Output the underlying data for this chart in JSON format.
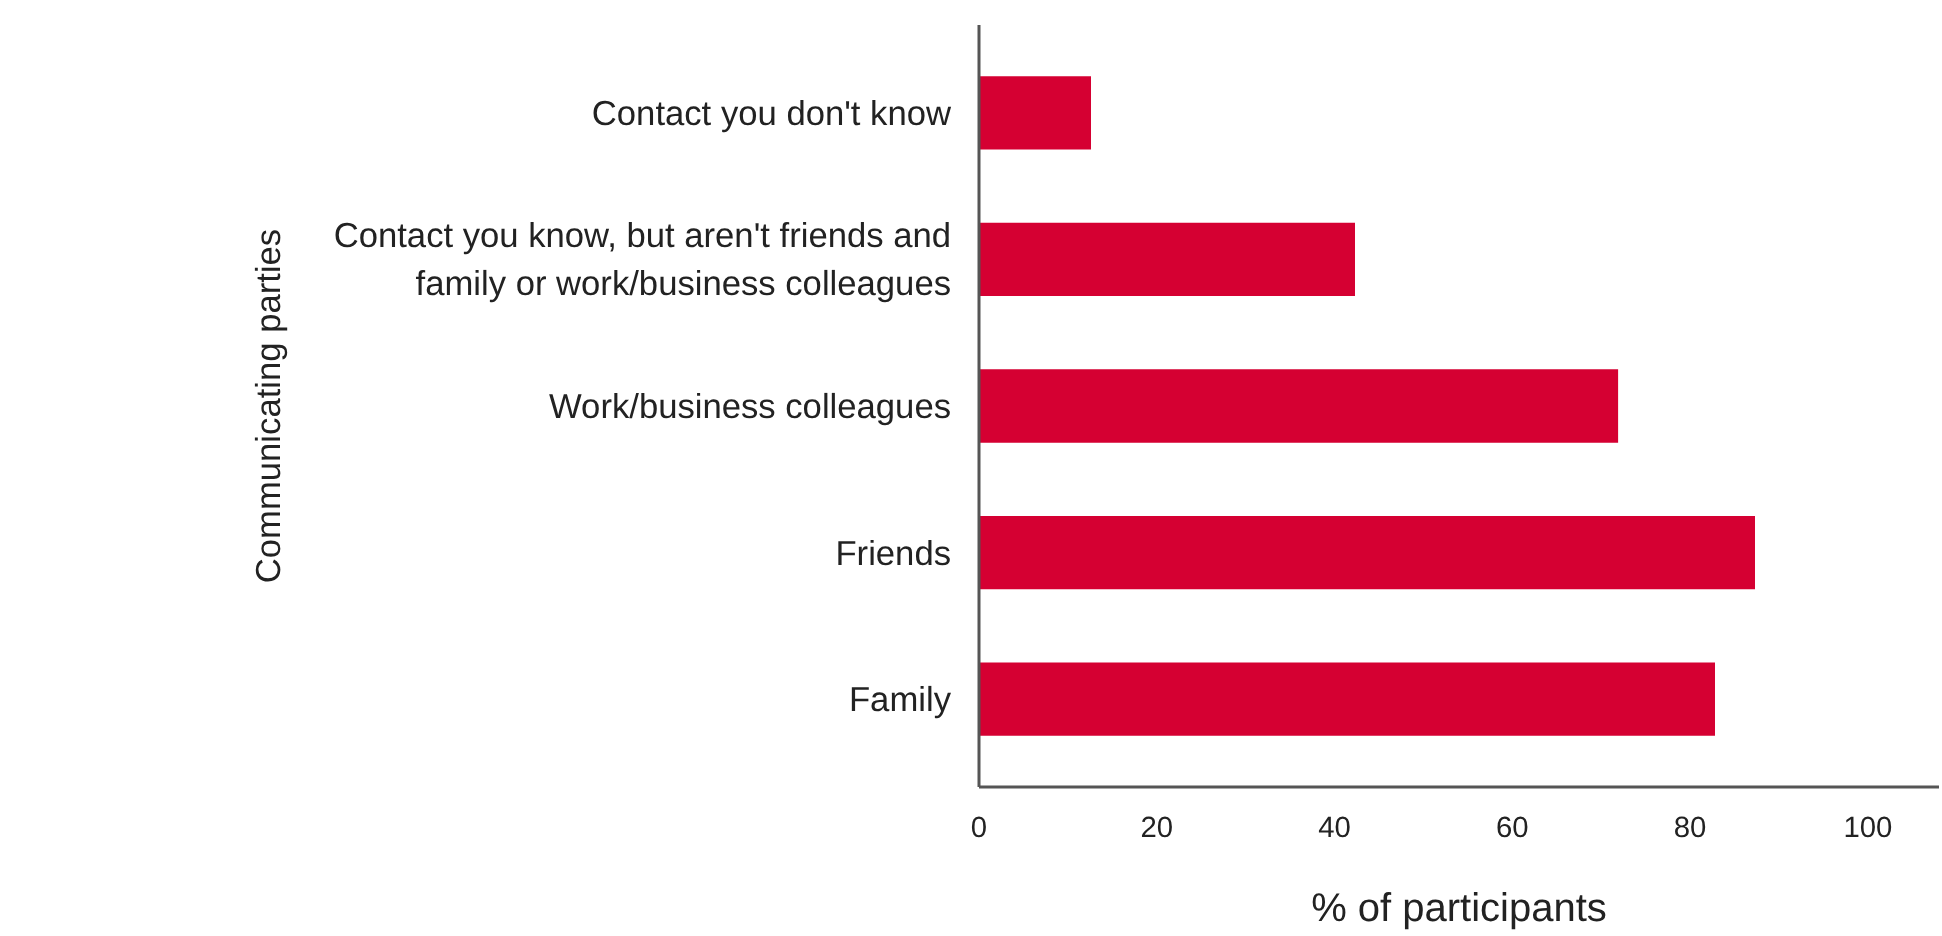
{
  "chart_data": {
    "type": "bar",
    "orientation": "horizontal",
    "categories": [
      "Contact you don't know",
      "Contact you know, but aren't friends and family or work/business colleagues",
      "Work/business colleagues",
      "Friends",
      "Family"
    ],
    "values": [
      12.6,
      42.3,
      71.9,
      87.3,
      82.8
    ],
    "color": "#d50032",
    "xlabel": "% of participants",
    "ylabel": "Communicating parties",
    "xlim": [
      0,
      108
    ],
    "xticks": [
      0,
      20,
      40,
      60,
      80,
      100
    ],
    "grid": false
  }
}
